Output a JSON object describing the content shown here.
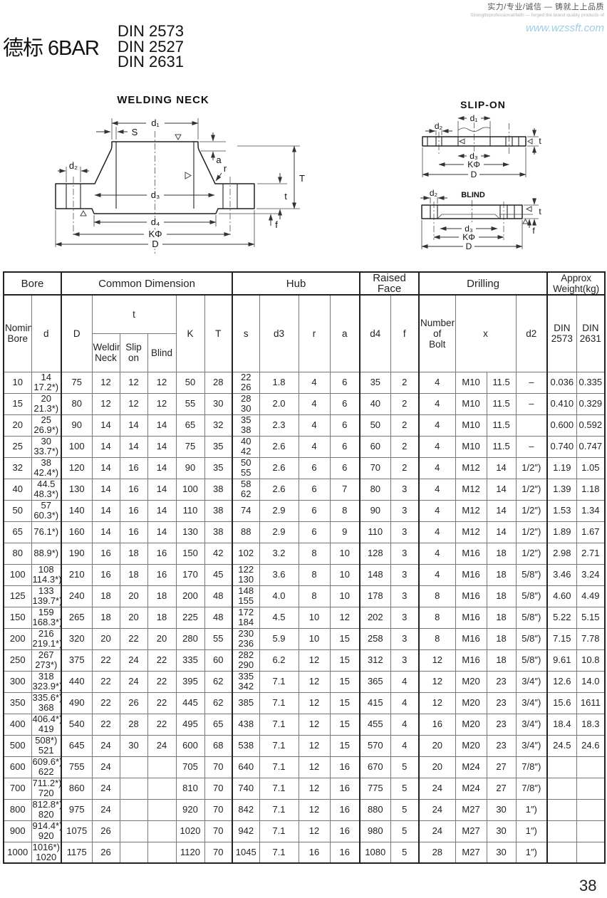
{
  "page": {
    "number": "38"
  },
  "header": {
    "title_cn": "德标 6BAR",
    "standards": [
      "DIN 2573",
      "DIN 2527",
      "DIN 2631"
    ],
    "slogan_cn": "实力/专业/诚信 — 铸就上上品质",
    "slogan_en": "Strength/professional/faith — forged the brand quality products of",
    "website": "www.wzssft.com",
    "website_color": "#9fcde8"
  },
  "diagrams": {
    "welding_neck": {
      "title": "WELDING NECK",
      "labels": {
        "d1": "d₁",
        "s": "S",
        "d2": "d₂",
        "d3": "d₃",
        "d4": "d₄",
        "k": "KΦ",
        "D": "D",
        "T": "T",
        "t": "t",
        "f": "f",
        "a": "a",
        "r": "r"
      }
    },
    "slip_on": {
      "title": "SLIP-ON",
      "labels": {
        "d1": "d₁",
        "d2": "d₂",
        "d3": "d₃",
        "k": "KΦ",
        "D": "D",
        "t": "t"
      }
    },
    "blind": {
      "title": "BLIND",
      "labels": {
        "d2": "d₂",
        "d3": "d₃",
        "k": "KΦ",
        "D": "D",
        "t": "t",
        "f": "f"
      }
    }
  },
  "table": {
    "groups": {
      "bore": "Bore",
      "common": "Common Dimension",
      "hub": "Hub",
      "raised_face": "Raised Face",
      "drilling": "Drilling",
      "weight": "Approx\nWeight(kg)"
    },
    "columns": {
      "nominal_bore": "Nominal\nBore",
      "d": "d",
      "D": "D",
      "t": "t",
      "t_welding": "Welding\nNeck",
      "t_slip": "Slip\non",
      "t_blind": "Blind",
      "K": "K",
      "T": "T",
      "s": "s",
      "d3": "d3",
      "r": "r",
      "a": "a",
      "d4": "d4",
      "f": "f",
      "bolts": "Number\nof\nBolt",
      "x": "x",
      "d2": "d2",
      "din2573": "DIN\n2573",
      "din2631": "DIN\n2631"
    },
    "rows": [
      [
        "10",
        "14\n17.2*)",
        "75",
        "12",
        "12",
        "12",
        "50",
        "28",
        "22\n26",
        "1.8",
        "4",
        "6",
        "35",
        "2",
        "4",
        "M10",
        "11.5",
        "–",
        "0.036",
        "0.335"
      ],
      [
        "15",
        "20\n21.3*)",
        "80",
        "12",
        "12",
        "12",
        "55",
        "30",
        "28\n30",
        "2.0",
        "4",
        "6",
        "40",
        "2",
        "4",
        "M10",
        "11.5",
        "–",
        "0.410",
        "0.329"
      ],
      [
        "20",
        "25\n26.9*)",
        "90",
        "14",
        "14",
        "14",
        "65",
        "32",
        "35\n38",
        "2.3",
        "4",
        "6",
        "50",
        "2",
        "4",
        "M10",
        "11.5",
        "",
        "0.600",
        "0.592"
      ],
      [
        "25",
        "30\n33.7*)",
        "100",
        "14",
        "14",
        "14",
        "75",
        "35",
        "40\n42",
        "2.6",
        "4",
        "6",
        "60",
        "2",
        "4",
        "M10",
        "11.5",
        "–",
        "0.740",
        "0.747"
      ],
      [
        "32",
        "38\n42.4*)",
        "120",
        "14",
        "16",
        "14",
        "90",
        "35",
        "50\n55",
        "2.6",
        "6",
        "6",
        "70",
        "2",
        "4",
        "M12",
        "14",
        "1/2″)",
        "1.19",
        "1.05"
      ],
      [
        "40",
        "44.5\n48.3*)",
        "130",
        "14",
        "16",
        "14",
        "100",
        "38",
        "58\n62",
        "2.6",
        "6",
        "7",
        "80",
        "3",
        "4",
        "M12",
        "14",
        "1/2″)",
        "1.39",
        "1.18"
      ],
      [
        "50",
        "57\n60.3*)",
        "140",
        "14",
        "16",
        "14",
        "110",
        "38",
        "74",
        "2.9",
        "6",
        "8",
        "90",
        "3",
        "4",
        "M12",
        "14",
        "1/2″)",
        "1.53",
        "1.34"
      ],
      [
        "65",
        "76.1*)",
        "160",
        "14",
        "16",
        "14",
        "130",
        "38",
        "88",
        "2.9",
        "6",
        "9",
        "110",
        "3",
        "4",
        "M12",
        "14",
        "1/2″)",
        "1.89",
        "1.67"
      ],
      [
        "80",
        "88.9*)",
        "190",
        "16",
        "18",
        "16",
        "150",
        "42",
        "102",
        "3.2",
        "8",
        "10",
        "128",
        "3",
        "4",
        "M16",
        "18",
        "1/2″)",
        "2.98",
        "2.71"
      ],
      [
        "100",
        "108\n114.3*)",
        "210",
        "16",
        "18",
        "16",
        "170",
        "45",
        "122\n130",
        "3.6",
        "8",
        "10",
        "148",
        "3",
        "4",
        "M16",
        "18",
        "5/8″)",
        "3.46",
        "3.24"
      ],
      [
        "125",
        "133\n139.7*)",
        "240",
        "18",
        "20",
        "18",
        "200",
        "48",
        "148\n155",
        "4.0",
        "8",
        "10",
        "178",
        "3",
        "8",
        "M16",
        "18",
        "5/8″)",
        "4.60",
        "4.49"
      ],
      [
        "150",
        "159\n168.3*)",
        "265",
        "18",
        "20",
        "18",
        "225",
        "48",
        "172\n184",
        "4.5",
        "10",
        "12",
        "202",
        "3",
        "8",
        "M16",
        "18",
        "5/8″)",
        "5.22",
        "5.15"
      ],
      [
        "200",
        "216\n219.1*)",
        "320",
        "20",
        "22",
        "20",
        "280",
        "55",
        "230\n236",
        "5.9",
        "10",
        "15",
        "258",
        "3",
        "8",
        "M16",
        "18",
        "5/8″)",
        "7.15",
        "7.78"
      ],
      [
        "250",
        "267\n273*)",
        "375",
        "22",
        "24",
        "22",
        "335",
        "60",
        "282\n290",
        "6.2",
        "12",
        "15",
        "312",
        "3",
        "12",
        "M16",
        "18",
        "5/8″)",
        "9.61",
        "10.8"
      ],
      [
        "300",
        "318\n323.9*)",
        "440",
        "22",
        "24",
        "22",
        "395",
        "62",
        "335\n342",
        "7.1",
        "12",
        "15",
        "365",
        "4",
        "12",
        "M20",
        "23",
        "3/4″)",
        "12.6",
        "14.0"
      ],
      [
        "350",
        "335.6*)\n368",
        "490",
        "22",
        "26",
        "22",
        "445",
        "62",
        "385",
        "7.1",
        "12",
        "15",
        "415",
        "4",
        "12",
        "M20",
        "23",
        "3/4″)",
        "15.6",
        "1611"
      ],
      [
        "400",
        "406.4*)\n419",
        "540",
        "22",
        "28",
        "22",
        "495",
        "65",
        "438",
        "7.1",
        "12",
        "15",
        "455",
        "4",
        "16",
        "M20",
        "23",
        "3/4″)",
        "18.4",
        "18.3"
      ],
      [
        "500",
        "508*)\n521",
        "645",
        "24",
        "30",
        "24",
        "600",
        "68",
        "538",
        "7.1",
        "12",
        "15",
        "570",
        "4",
        "20",
        "M20",
        "23",
        "3/4″)",
        "24.5",
        "24.6"
      ],
      [
        "600",
        "609.6*)\n622",
        "755",
        "24",
        "",
        "",
        "705",
        "70",
        "640",
        "7.1",
        "12",
        "16",
        "670",
        "5",
        "20",
        "M24",
        "27",
        "7/8″)",
        "",
        ""
      ],
      [
        "700",
        "711.2*)\n720",
        "860",
        "24",
        "",
        "",
        "810",
        "70",
        "740",
        "7.1",
        "12",
        "16",
        "775",
        "5",
        "24",
        "M24",
        "27",
        "7/8″)",
        "",
        ""
      ],
      [
        "800",
        "812.8*)\n820",
        "975",
        "24",
        "",
        "",
        "920",
        "70",
        "842",
        "7.1",
        "12",
        "16",
        "880",
        "5",
        "24",
        "M27",
        "30",
        "1″)",
        "",
        ""
      ],
      [
        "900",
        "914.4*)\n920",
        "1075",
        "26",
        "",
        "",
        "1020",
        "70",
        "942",
        "7.1",
        "12",
        "16",
        "980",
        "5",
        "24",
        "M27",
        "30",
        "1″)",
        "",
        ""
      ],
      [
        "1000",
        "1016*)\n1020",
        "1175",
        "26",
        "",
        "",
        "1120",
        "70",
        "1045",
        "7.1",
        "16",
        "16",
        "1080",
        "5",
        "28",
        "M27",
        "30",
        "1″)",
        "",
        ""
      ]
    ]
  }
}
